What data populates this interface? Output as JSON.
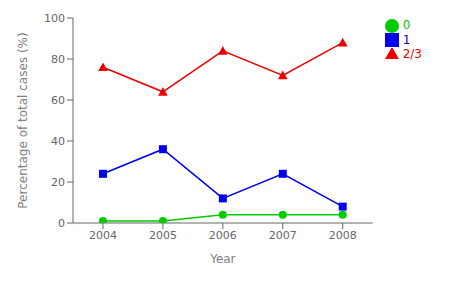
{
  "chart_data": {
    "type": "line",
    "x": [
      2004,
      2005,
      2006,
      2007,
      2008
    ],
    "series": [
      {
        "name": "0",
        "color": "#00cc00",
        "marker": "circle",
        "values": [
          1,
          1,
          4,
          4,
          4
        ]
      },
      {
        "name": "1",
        "color": "#0000ee",
        "marker": "square",
        "values": [
          24,
          36,
          12,
          24,
          8
        ]
      },
      {
        "name": "2/3",
        "color": "#ee0000",
        "marker": "triangle",
        "values": [
          76,
          64,
          84,
          72,
          88
        ]
      }
    ],
    "xlabel": "Year",
    "ylabel": "Percentage of total cases (%)",
    "xlim": [
      2003.5,
      2008.5
    ],
    "xticks": [
      2004,
      2005,
      2006,
      2007,
      2008
    ],
    "ylim": [
      0,
      100
    ],
    "yticks": [
      0,
      20,
      40,
      60,
      80,
      100
    ],
    "grid": false,
    "legend": "right"
  }
}
